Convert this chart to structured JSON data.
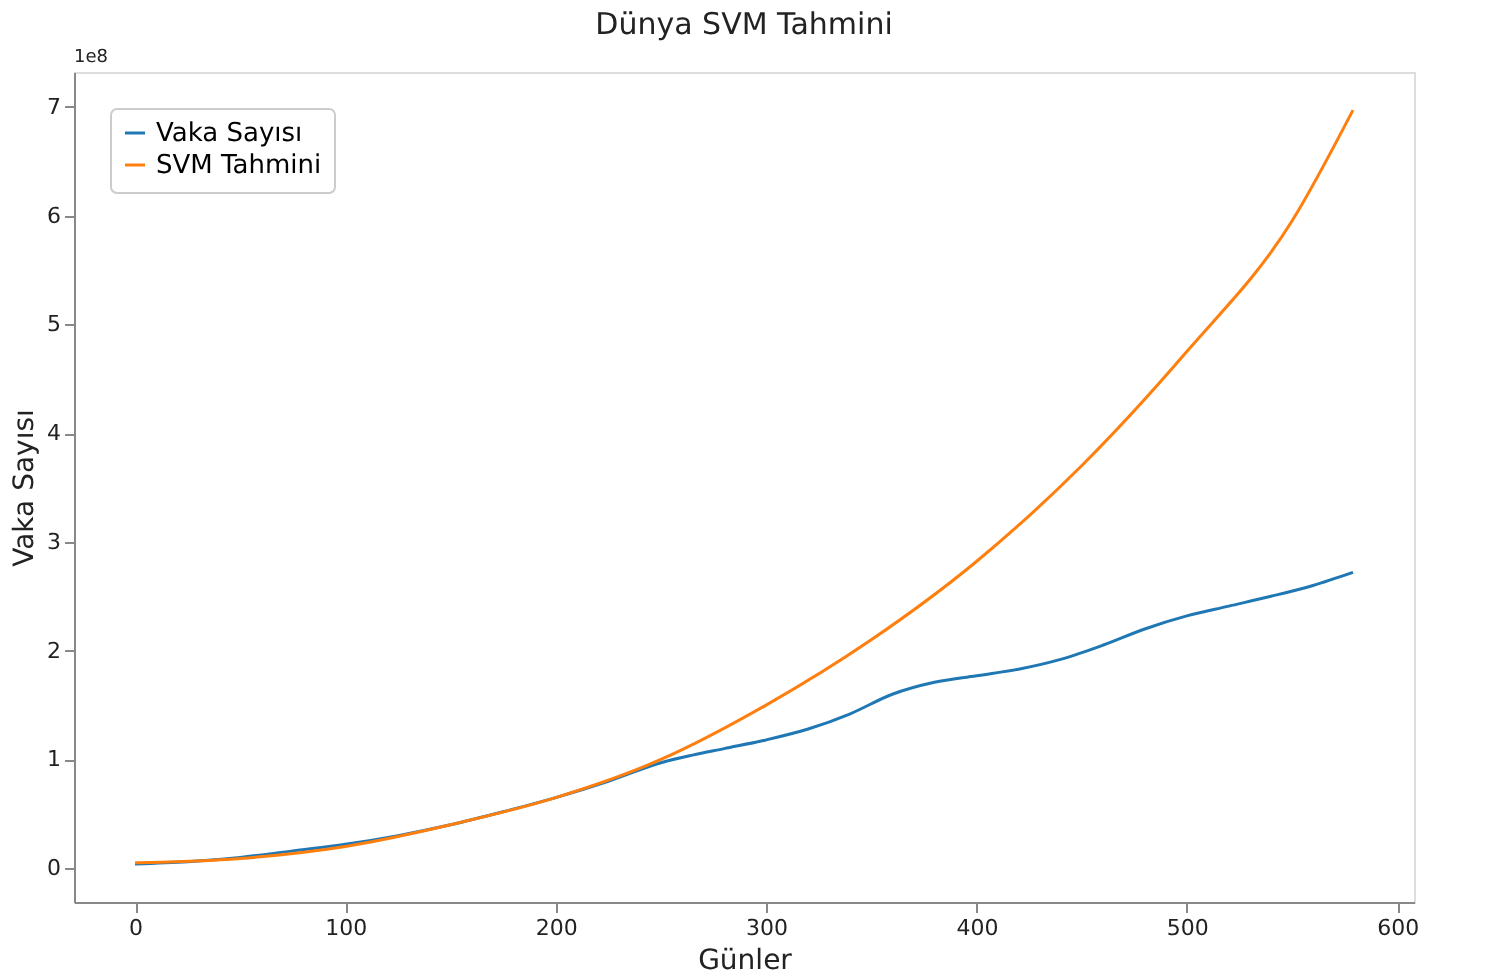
{
  "chart_data": {
    "type": "line",
    "title": "Dünya SVM Tahmini",
    "xlabel": "Günler",
    "ylabel": "Vaka Sayısı",
    "annotations": [
      "1e8"
    ],
    "series": [
      {
        "name": "Vaka Sayısı",
        "color": "#1f77b4",
        "x": [
          0,
          25,
          50,
          75,
          100,
          125,
          150,
          175,
          200,
          225,
          250,
          265,
          280,
          300,
          320,
          340,
          360,
          380,
          400,
          420,
          440,
          460,
          480,
          500,
          520,
          540,
          560,
          579
        ],
        "values": [
          0.04,
          0.06,
          0.1,
          0.16,
          0.22,
          0.3,
          0.4,
          0.52,
          0.65,
          0.8,
          0.97,
          1.04,
          1.1,
          1.18,
          1.28,
          1.42,
          1.6,
          1.71,
          1.77,
          1.83,
          1.92,
          2.05,
          2.2,
          2.32,
          2.41,
          2.5,
          2.6,
          2.72
        ]
      },
      {
        "name": "SVM Tahmini",
        "color": "#ff7f0e",
        "x": [
          0,
          50,
          100,
          150,
          200,
          250,
          300,
          350,
          400,
          450,
          500,
          550,
          579
        ],
        "values": [
          0.05,
          0.09,
          0.2,
          0.4,
          0.65,
          1.0,
          1.5,
          2.1,
          2.82,
          3.7,
          4.75,
          5.95,
          6.97
        ]
      }
    ],
    "xlim": [
      -29,
      608
    ],
    "xticks": [
      0,
      100,
      200,
      300,
      400,
      500,
      600
    ],
    "ylim": [
      -0.31,
      7.32
    ],
    "yticks": [
      0,
      1,
      2,
      3,
      4,
      5,
      6,
      7
    ],
    "grid": false,
    "legend": "top left",
    "line_style": "solid",
    "marker": "none"
  }
}
